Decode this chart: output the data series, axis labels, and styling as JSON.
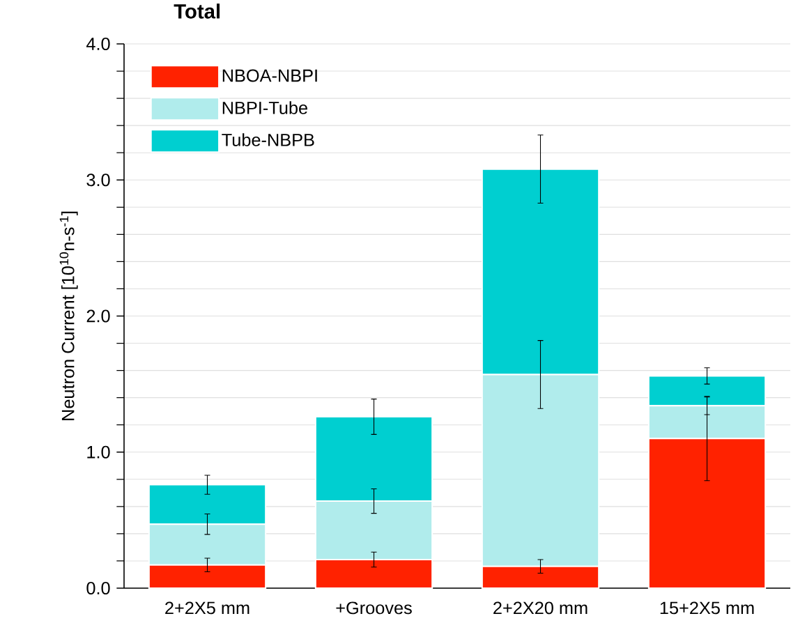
{
  "chart_data": {
    "type": "bar",
    "title": "Total",
    "ylabel": "Neutron Current [10$^{10}$n-s$^{-1}$]",
    "categories": [
      "2+2X5 mm",
      "+Grooves",
      "2+2X20 mm",
      "15+2X5 mm"
    ],
    "stacked": true,
    "legend": "top left",
    "grid": "y",
    "ylim": [
      0,
      4
    ],
    "yticks": [
      {
        "value": 0,
        "label": "0.0"
      },
      {
        "value": 0.2,
        "label": null
      },
      {
        "value": 0.4,
        "label": null
      },
      {
        "value": 0.6,
        "label": null
      },
      {
        "value": 0.8,
        "label": null
      },
      {
        "value": 1,
        "label": "1.0"
      },
      {
        "value": 1.2,
        "label": null
      },
      {
        "value": 1.4,
        "label": null
      },
      {
        "value": 1.6,
        "label": null
      },
      {
        "value": 1.8,
        "label": null
      },
      {
        "value": 2,
        "label": "2.0"
      },
      {
        "value": 2.2,
        "label": null
      },
      {
        "value": 2.4,
        "label": null
      },
      {
        "value": 2.6,
        "label": null
      },
      {
        "value": 2.8,
        "label": null
      },
      {
        "value": 3,
        "label": "3.0"
      },
      {
        "value": 3.2,
        "label": null
      },
      {
        "value": 3.4,
        "label": null
      },
      {
        "value": 3.6,
        "label": null
      },
      {
        "value": 3.8,
        "label": null
      },
      {
        "value": 4,
        "label": "4.0"
      }
    ],
    "series": [
      {
        "name": "NBOA-NBPI",
        "color": "#ff2200",
        "values": [
          0.17,
          0.21,
          0.16,
          1.1
        ],
        "errors": [
          0.05,
          0.055,
          0.05,
          0.31
        ]
      },
      {
        "name": "NBPI-Tube",
        "color": "#b0ecec",
        "values": [
          0.3,
          0.43,
          1.41,
          0.24
        ],
        "errors": [
          0.075,
          0.09,
          0.25,
          0.065
        ]
      },
      {
        "name": "Tube-NBPB",
        "color": "#00cfd0",
        "values": [
          0.29,
          0.62,
          1.51,
          0.22
        ],
        "errors": [
          0.07,
          0.13,
          0.25,
          0.06
        ]
      }
    ]
  }
}
